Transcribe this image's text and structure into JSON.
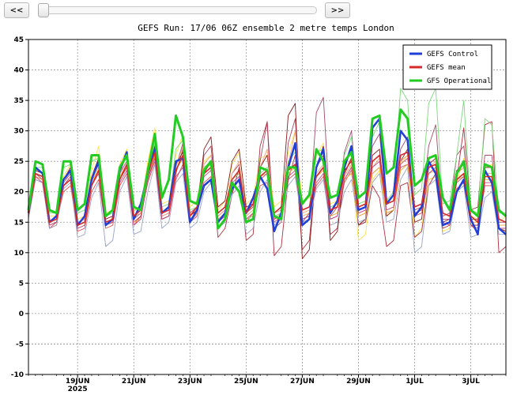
{
  "controls": {
    "prev_label": "<<",
    "next_label": ">>",
    "slider_value": 0
  },
  "title": "GEFS Run: 17/06 06Z ensemble 2 metre temps London",
  "colors": {
    "control": "#1f3fd8",
    "mean": "#d42a2a",
    "operational": "#22cc22"
  },
  "legend": {
    "position": "top-right",
    "items": [
      {
        "label": "GEFS Control",
        "color": "#1f3fd8"
      },
      {
        "label": "GEFS mean",
        "color": "#d42a2a"
      },
      {
        "label": "GFS Operational",
        "color": "#22cc22"
      }
    ]
  },
  "chart_data": {
    "type": "line",
    "title": "GEFS Run: 17/06 06Z ensemble 2 metre temps London",
    "xlabel": "",
    "ylabel": "",
    "ylim": [
      -10,
      45
    ],
    "yticks": [
      -10,
      -5,
      0,
      5,
      10,
      15,
      20,
      25,
      30,
      35,
      40,
      45
    ],
    "grid": true,
    "x_step_hours": 6,
    "x_start": "17/06 06Z",
    "xtick_labels": [
      {
        "step": 7,
        "label": "19JUN",
        "sub": "2025"
      },
      {
        "step": 15,
        "label": "21JUN",
        "sub": ""
      },
      {
        "step": 23,
        "label": "23JUN",
        "sub": ""
      },
      {
        "step": 31,
        "label": "25JUN",
        "sub": ""
      },
      {
        "step": 39,
        "label": "27JUN",
        "sub": ""
      },
      {
        "step": 47,
        "label": "29JUN",
        "sub": ""
      },
      {
        "step": 55,
        "label": "1JUL",
        "sub": ""
      },
      {
        "step": 63,
        "label": "3JUL",
        "sub": ""
      }
    ],
    "series": [
      {
        "name": "GEFS Control",
        "color": "#1f3fd8",
        "width": 2.5,
        "values": [
          16.5,
          24,
          23,
          15,
          16,
          22,
          23.5,
          14.5,
          16,
          22,
          25,
          14.5,
          15.5,
          23.5,
          26.5,
          15.5,
          18,
          23,
          27,
          16.5,
          17.5,
          25,
          25.5,
          15,
          17,
          21,
          22,
          15,
          16.5,
          20.5,
          22,
          16.5,
          19,
          22.5,
          20.5,
          13.5,
          16.5,
          24,
          28,
          14.5,
          15.5,
          24,
          27,
          16.5,
          18.5,
          24,
          27.5,
          17,
          17.5,
          30.5,
          32,
          18,
          19.5,
          30,
          28.5,
          16,
          17.5,
          25,
          23,
          14.5,
          15,
          20,
          22,
          15.5,
          13,
          23.5,
          21.5,
          14,
          13
        ]
      },
      {
        "name": "GEFS mean",
        "color": "#d42a2a",
        "width": 1.6,
        "values": [
          16.5,
          23,
          22.5,
          15,
          15.5,
          21,
          22,
          14.5,
          15,
          21,
          23.5,
          15,
          15.5,
          22,
          24.5,
          16,
          17,
          23,
          26.5,
          16.5,
          17,
          23.5,
          26,
          16,
          17.5,
          23,
          24,
          16.5,
          17.5,
          22,
          23.5,
          16.5,
          18,
          22.5,
          23.5,
          16.5,
          17.5,
          23.5,
          24.5,
          17,
          17.5,
          22.5,
          24,
          17,
          17.5,
          23,
          25.5,
          17.5,
          18,
          25,
          26,
          18,
          18.5,
          26,
          26.5,
          17.5,
          18,
          24,
          24.5,
          16.5,
          16,
          22,
          23,
          16,
          15,
          22.5,
          22.5,
          15.5,
          15
        ]
      },
      {
        "name": "GFS Operational",
        "color": "#22cc22",
        "width": 3,
        "values": [
          17,
          25,
          24.5,
          17,
          16.5,
          25,
          25,
          17,
          18,
          26,
          26,
          16,
          17,
          24,
          26,
          17.5,
          17,
          23.5,
          29.5,
          19,
          22,
          32.5,
          29,
          18.5,
          18,
          23.5,
          25,
          14,
          15.5,
          21.5,
          20,
          15,
          15.5,
          24,
          23.5,
          16,
          15.5,
          24,
          24,
          18,
          19.5,
          27,
          25,
          19,
          19.5,
          25,
          26.5,
          19,
          20,
          32,
          32.5,
          23,
          24,
          33.5,
          32,
          21,
          22,
          25.5,
          26,
          19,
          17,
          23,
          25,
          17,
          16,
          24.5,
          24,
          17,
          16
        ]
      },
      {
        "name": "",
        "color": "#e05050",
        "width": 0.9,
        "values": [
          16,
          22,
          21.5,
          14,
          15,
          20,
          21,
          13.5,
          14,
          20,
          22,
          14,
          14.5,
          21,
          23,
          14.5,
          16,
          21.5,
          25,
          15.5,
          16,
          22,
          24.5,
          15,
          16.5,
          21.5,
          22.5,
          15,
          16.5,
          20.5,
          22,
          15,
          16.5,
          21,
          21.5,
          15,
          16,
          22,
          23,
          15.5,
          16,
          21,
          22.5,
          15.5,
          16,
          21.5,
          23.5,
          16,
          16.5,
          23,
          24,
          16.5,
          17,
          24,
          24.5,
          16,
          16.5,
          22,
          22.5,
          15,
          14.5,
          20.5,
          21.5,
          14.5,
          13.5,
          21,
          21,
          14,
          13.5
        ]
      },
      {
        "name": "",
        "color": "#ffe14d",
        "width": 0.9,
        "values": [
          17,
          23.5,
          23,
          16,
          16,
          22.5,
          24.5,
          15.5,
          16,
          23.5,
          27.5,
          16.5,
          17,
          24.5,
          27,
          17,
          17.5,
          25,
          30.5,
          18,
          18.5,
          26,
          29.5,
          17.5,
          18.5,
          25,
          26,
          17,
          18.5,
          24.5,
          26.5,
          18,
          19,
          25.5,
          26,
          17.5,
          18.5,
          26.5,
          30,
          18.5,
          19,
          26,
          28,
          18,
          18.5,
          25,
          24,
          12,
          13,
          22,
          23.5,
          16,
          17,
          24.5,
          26,
          12.5,
          14,
          22,
          22.5,
          13.5,
          14,
          21.5,
          25.5,
          16,
          15.5,
          24,
          24.5,
          15,
          16
        ]
      },
      {
        "name": "",
        "color": "#a84a6a",
        "width": 0.9,
        "values": [
          16,
          23,
          22,
          14.5,
          15,
          21.5,
          23,
          14.5,
          15,
          22,
          24.5,
          15,
          15.5,
          23,
          25,
          15.5,
          16.5,
          23,
          27,
          16,
          16.5,
          24,
          28,
          16.5,
          17.5,
          26,
          27.5,
          16,
          17,
          23,
          24.5,
          16.5,
          17.5,
          25,
          31.5,
          14,
          15,
          28,
          32,
          15,
          16.5,
          33,
          35.5,
          16,
          17.5,
          26.5,
          30,
          17,
          17.5,
          27.5,
          29.5,
          18,
          18.5,
          27,
          29,
          17,
          17.5,
          27.5,
          31,
          16,
          16.5,
          26,
          27.5,
          15.5,
          15.5,
          26,
          26,
          15,
          15
        ]
      },
      {
        "name": "",
        "color": "#b03040",
        "width": 0.9,
        "values": [
          16.5,
          22.5,
          22,
          14,
          14.5,
          21,
          22.5,
          14,
          14.5,
          21,
          23.5,
          14.5,
          15,
          22,
          24,
          15,
          16,
          22,
          26,
          15.5,
          16,
          23,
          27,
          15.5,
          16.5,
          23,
          25,
          12.5,
          14,
          19.5,
          24,
          12,
          13,
          27.5,
          31.5,
          9.5,
          11,
          22,
          26,
          10.5,
          12,
          24,
          26,
          13,
          14,
          22,
          24,
          14.5,
          15,
          21,
          19,
          11,
          12,
          21,
          21.5,
          12.5,
          13.5,
          21,
          23,
          14,
          14.5,
          22,
          30.5,
          17,
          17.5,
          31,
          31.5,
          10,
          11
        ]
      },
      {
        "name": "",
        "color": "#8b1a1a",
        "width": 0.9,
        "values": [
          17,
          23.5,
          23,
          15,
          15.5,
          22,
          24,
          15,
          15.5,
          22.5,
          25.5,
          15.5,
          16,
          24,
          25.5,
          16,
          17,
          23.5,
          27.5,
          16.5,
          17,
          24.5,
          26.5,
          16,
          17,
          27,
          29,
          17.5,
          18.5,
          25,
          27,
          17.5,
          18,
          24,
          26,
          16.5,
          17.5,
          32.5,
          34.5,
          9,
          10.5,
          24,
          27.5,
          12,
          13.5,
          23.5,
          25,
          14.5,
          15.5,
          26,
          27,
          16,
          17,
          25,
          27,
          15,
          15.5,
          24.5,
          25.5,
          15,
          15.5,
          23.5,
          24.5,
          14.5,
          14.5,
          24,
          24,
          14,
          13.5
        ]
      },
      {
        "name": "",
        "color": "#9aa3c8",
        "width": 0.9,
        "values": [
          15.5,
          22,
          21.5,
          14,
          14.5,
          20.5,
          21.5,
          12.5,
          13,
          19,
          21.5,
          11,
          12,
          20,
          22.5,
          13,
          13.5,
          20,
          24.5,
          14,
          15,
          21.5,
          23,
          14,
          15,
          20,
          21.5,
          14,
          15,
          19.5,
          21,
          13,
          14,
          20,
          22,
          14.5,
          15.5,
          21,
          22.5,
          15,
          15.5,
          20.5,
          22,
          14.5,
          15,
          20,
          22,
          15,
          15.5,
          21.5,
          23,
          15,
          15.5,
          22,
          24,
          10,
          11,
          21,
          22,
          13,
          13.5,
          20,
          21,
          12.5,
          13,
          19,
          20,
          13,
          13
        ]
      },
      {
        "name": "",
        "color": "#7bd97b",
        "width": 0.9,
        "values": [
          16.5,
          24,
          24,
          16.5,
          16.5,
          24,
          24.5,
          16.5,
          17,
          25,
          25.5,
          16,
          16.5,
          24,
          25.5,
          17,
          17,
          23.5,
          28,
          17.5,
          18,
          27,
          28.5,
          17,
          17.5,
          24,
          25,
          15.5,
          16,
          22,
          23,
          15.5,
          16,
          23,
          24,
          16,
          16.5,
          25,
          26.5,
          17,
          17.5,
          26.5,
          27,
          17.5,
          18,
          26,
          29,
          18,
          18.5,
          29,
          31.5,
          18.5,
          20,
          37,
          35,
          19.5,
          20.5,
          34.5,
          37,
          18,
          18.5,
          26,
          35,
          17,
          16.5,
          32,
          31,
          16.5,
          16.5
        ]
      },
      {
        "name": "",
        "color": "#f2a07a",
        "width": 0.9,
        "values": [
          16,
          23,
          22.5,
          15,
          15.5,
          21.5,
          23.5,
          15,
          15.5,
          22.5,
          25,
          15,
          15.5,
          23,
          26,
          16,
          16.5,
          22.5,
          27,
          16,
          16.5,
          24,
          27.5,
          15.5,
          16.5,
          24.5,
          26,
          16,
          17,
          23,
          25,
          16,
          17,
          24,
          27,
          16.5,
          17,
          24.5,
          30,
          16.5,
          17,
          23,
          24.5,
          16,
          16.5,
          22.5,
          24.5,
          16.5,
          17,
          24,
          25.5,
          17,
          17.5,
          25,
          26,
          16.5,
          17,
          24,
          25,
          15.5,
          15.5,
          23,
          24,
          15,
          15,
          23,
          23,
          14.5,
          14.5
        ]
      },
      {
        "name": "",
        "color": "#e8b040",
        "width": 0.9,
        "values": [
          16.5,
          22.5,
          22,
          14.5,
          15,
          21,
          22,
          14,
          14.5,
          21.5,
          24,
          14.5,
          15,
          22.5,
          24.5,
          15,
          15.5,
          22.5,
          26,
          15.5,
          16,
          23.5,
          25.5,
          15,
          16,
          23.5,
          24.5,
          15.5,
          16.5,
          22,
          23.5,
          15.5,
          16.5,
          22.5,
          23,
          15.5,
          16.5,
          23,
          24,
          16,
          16.5,
          22.5,
          23.5,
          16,
          16.5,
          22,
          23,
          16,
          16.5,
          23,
          24,
          16.5,
          17,
          23.5,
          24.5,
          16.5,
          17,
          23,
          23.5,
          15.5,
          15.5,
          22,
          22.5,
          15,
          15,
          22,
          22,
          14.5,
          14.5
        ]
      },
      {
        "name": "",
        "color": "#c44a8a",
        "width": 0.9,
        "values": [
          16,
          22.5,
          21.5,
          14.5,
          15,
          21,
          22.5,
          14,
          14.5,
          21,
          23,
          14.5,
          15,
          21.5,
          23.5,
          14.5,
          15.5,
          22,
          25.5,
          15.5,
          16,
          22.5,
          24,
          15,
          16,
          22.5,
          23.5,
          15,
          16,
          21.5,
          22.5,
          15.5,
          16.5,
          22,
          23,
          15.5,
          16,
          22.5,
          23.5,
          15.5,
          16,
          21.5,
          23,
          15.5,
          16,
          22,
          24,
          16.5,
          17,
          24,
          25,
          17,
          17.5,
          24.5,
          25.5,
          16.5,
          17,
          23,
          24,
          15.5,
          15.5,
          21.5,
          22.5,
          14.5,
          14,
          21.5,
          21.5,
          14,
          14
        ]
      }
    ]
  }
}
